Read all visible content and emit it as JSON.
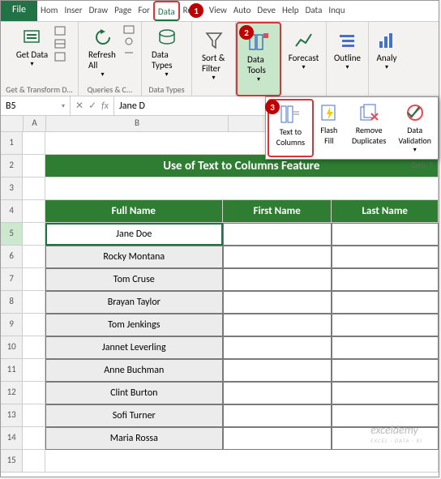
{
  "tabs": {
    "file": "File",
    "list": [
      "Hom",
      "Inser",
      "Draw",
      "Page",
      "For",
      "Data",
      "Revie",
      "View",
      "Auto",
      "Deve",
      "Help",
      "Data",
      "Inqu"
    ],
    "active_index": 5
  },
  "ribbon": {
    "getdata": {
      "btn": "Get Data",
      "group": "Get & Transform D..."
    },
    "refresh": {
      "btn": "Refresh All",
      "group": "Queries & C..."
    },
    "datatypes": {
      "btn": "Data Types",
      "group": "Data Types"
    },
    "sortfilter": "Sort & Filter",
    "datatools": "Data Tools",
    "forecast": "Forecast",
    "outline": "Outline",
    "analyze": "Analy"
  },
  "dropdown": {
    "text_to_columns": "Text to Columns",
    "flash_fill": "Flash Fill",
    "remove_dup": "Remove Duplicates",
    "data_val": "Data Validation",
    "group_label": "Data T"
  },
  "namebox": "B5",
  "fx_value": "Jane D",
  "columns": {
    "A": "A",
    "B": "B"
  },
  "col_widths": {
    "A": 28,
    "B": 225,
    "C": 138,
    "D": 135
  },
  "table": {
    "title": "Use of Text to Columns Feature",
    "headers": {
      "full": "Full Name",
      "first": "First Name",
      "last": "Last Name"
    },
    "names": [
      "Jane Doe",
      "Rocky Montana",
      "Tom Cruse",
      "Brayan Taylor",
      "Tom Jenkings",
      "Jannet Leverling",
      "Anne Buchman",
      "Clint Burton",
      "Sofi Turner",
      "Maria Rossa"
    ]
  },
  "markers": {
    "m1": "1",
    "m2": "2",
    "m3": "3"
  },
  "watermark": {
    "main": "exceldemy",
    "sub": "EXCEL · DATA · BI"
  },
  "colors": {
    "excel_green": "#217346",
    "header_green": "#2e7d32",
    "marker": "#c00000",
    "hl_red": "#d63638",
    "hl_green": "#c8e6c9"
  }
}
